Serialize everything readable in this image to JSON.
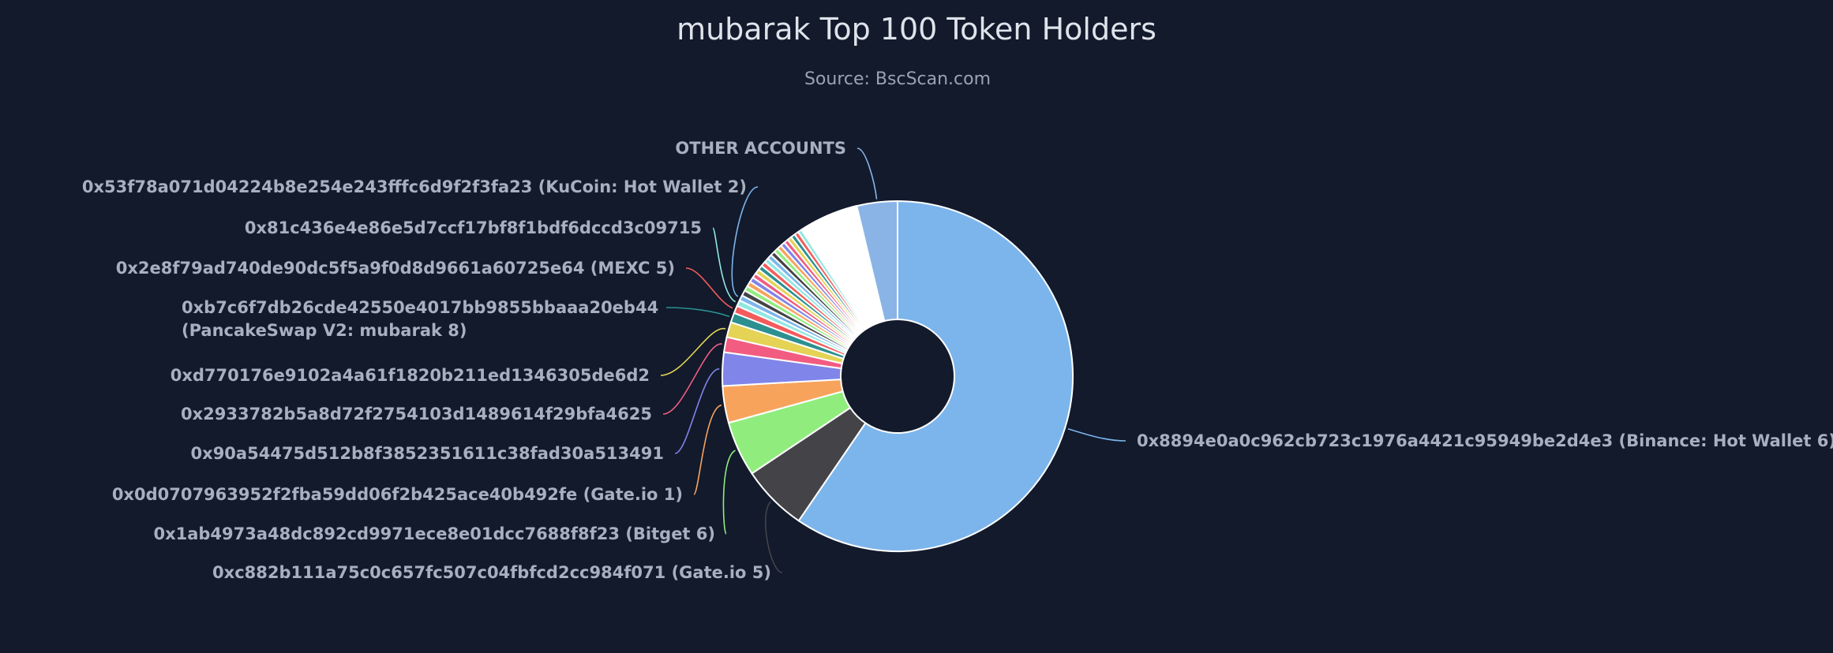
{
  "chart_data": {
    "type": "pie",
    "variant": "donut",
    "title": "mubarak Top 100 Token Holders",
    "subtitle": "Source: BscScan.com",
    "background": "#121a2c",
    "palette": [
      "#7cb5ec",
      "#434348",
      "#90ed7d",
      "#f7a35c",
      "#8085e9",
      "#f15c80",
      "#e4d354",
      "#2b908f",
      "#f45b5b",
      "#91e8e1"
    ],
    "labeled_slices": [
      {
        "label": "0x8894e0a0c962cb723c1976a4421c95949be2d4e3 (Binance: Hot Wallet 6)",
        "value": 59.7
      },
      {
        "label": "0xc882b111a75c0c657fc507c04fbfcd2cc984f071 (Gate.io 5)",
        "value": 6.1
      },
      {
        "label": "0x1ab4973a48dc892cd9971ece8e01dcc7688f8f23 (Bitget 6)",
        "value": 5.1
      },
      {
        "label": "0x0d0707963952f2fba59dd06f2b425ace40b492fe (Gate.io 1)",
        "value": 3.4
      },
      {
        "label": "0x90a54475d512b8f3852351611c38fad30a513491",
        "value": 3.1
      },
      {
        "label": "0x2933782b5a8d72f2754103d1489614f29bfa4625",
        "value": 1.4
      },
      {
        "label": "0xd770176e9102a4a61f1820b211ed1346305de6d2",
        "value": 1.4
      },
      {
        "label": [
          "0xb7c6f7db26cde42550e4017bb9855bbaaa20eb44",
          "(PancakeSwap V2: mubarak 8)"
        ],
        "value": 0.9
      },
      {
        "label": "0x2e8f79ad740de90dc5f5a9f0d8d9661a60725e64 (MEXC 5)",
        "value": 0.7
      },
      {
        "label": "0x81c436e4e86e5d7ccf17bf8f1bdf6dccd3c09715",
        "value": 0.55
      },
      {
        "label": "0x53f78a071d04224b8e254e243fffc6d9f2f3fa23 (KuCoin: Hot Wallet 2)",
        "value": 0.5
      }
    ],
    "unlabeled_small_slices": [
      0.5,
      0.48,
      0.47,
      0.46,
      0.45,
      0.45,
      0.44,
      0.44,
      0.43,
      0.43,
      0.42,
      0.42,
      0.41,
      0.41,
      0.4,
      0.4,
      0.39,
      0.39,
      0.38,
      0.1,
      0.1,
      0.1,
      0.1,
      0.1,
      0.1,
      0.1,
      0.1,
      0.1,
      0.1,
      0.09,
      0.09,
      0.09,
      0.09,
      0.09,
      0.09,
      0.09,
      0.09,
      0.09,
      0.09,
      0.08,
      0.08,
      0.08,
      0.08,
      0.08,
      0.08,
      0.08,
      0.08,
      0.08,
      0.08,
      0.08,
      0.08,
      0.08,
      0.08,
      0.08,
      0.08,
      0.08,
      0.08,
      0.08,
      0.08,
      0.07,
      0.07,
      0.07,
      0.07,
      0.07,
      0.07,
      0.07,
      0.07,
      0.07,
      0.07,
      0.07,
      0.07,
      0.07,
      0.07,
      0.07,
      0.07,
      0.07,
      0.07,
      0.07,
      0.07,
      0.06,
      0.06,
      0.06,
      0.06,
      0.06,
      0.06,
      0.06,
      0.06,
      0.06,
      0.06
    ],
    "other": {
      "label": "OTHER ACCOUNTS",
      "value": 3.75,
      "color": "#8ab4e6"
    }
  }
}
